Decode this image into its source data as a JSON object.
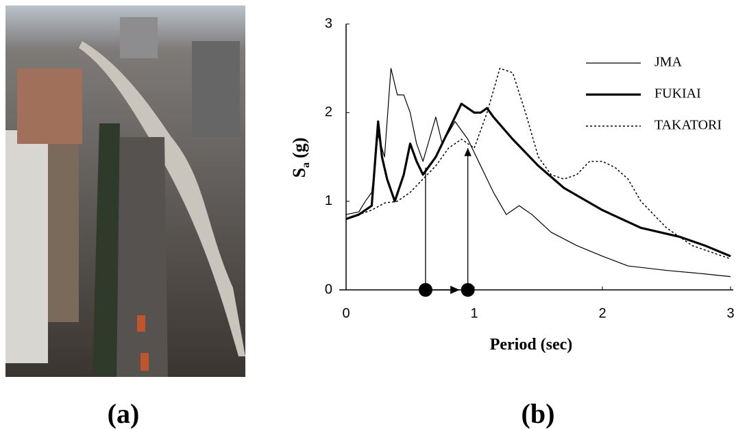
{
  "panel_labels": [
    "(a)",
    "(b)"
  ],
  "chart_data": {
    "type": "line",
    "xlabel": "Period (sec)",
    "ylabel_parts": [
      "S",
      "a",
      "(g)"
    ],
    "xlim": [
      0,
      3
    ],
    "ylim": [
      0,
      3
    ],
    "xticks": [
      0,
      1,
      2,
      3
    ],
    "yticks": [
      0,
      1,
      2,
      3
    ],
    "legend": "upper right",
    "series": [
      {
        "name": "JMA",
        "color": "#000000",
        "width": 1.2,
        "dash": "solid",
        "x": [
          0,
          0.1,
          0.15,
          0.2,
          0.25,
          0.3,
          0.35,
          0.4,
          0.45,
          0.5,
          0.55,
          0.6,
          0.65,
          0.7,
          0.75,
          0.85,
          0.95,
          1.05,
          1.15,
          1.25,
          1.3,
          1.35,
          1.45,
          1.6,
          1.8,
          2.0,
          2.2,
          2.5,
          2.8,
          3.0
        ],
        "values": [
          0.85,
          0.88,
          1.0,
          1.1,
          1.75,
          1.5,
          2.5,
          2.2,
          2.2,
          2.0,
          1.65,
          1.45,
          1.7,
          1.95,
          1.65,
          1.9,
          1.7,
          1.4,
          1.1,
          0.85,
          0.9,
          0.95,
          0.85,
          0.65,
          0.5,
          0.38,
          0.27,
          0.22,
          0.18,
          0.15
        ]
      },
      {
        "name": "FUKIAI",
        "color": "#000000",
        "width": 3.2,
        "dash": "solid",
        "x": [
          0,
          0.1,
          0.2,
          0.25,
          0.28,
          0.32,
          0.38,
          0.45,
          0.5,
          0.55,
          0.6,
          0.7,
          0.8,
          0.9,
          1.0,
          1.05,
          1.1,
          1.15,
          1.3,
          1.5,
          1.7,
          2.0,
          2.3,
          2.6,
          2.8,
          3.0
        ],
        "values": [
          0.8,
          0.85,
          0.95,
          1.9,
          1.5,
          1.25,
          1.0,
          1.3,
          1.65,
          1.45,
          1.3,
          1.5,
          1.8,
          2.1,
          2.0,
          2.0,
          2.05,
          1.95,
          1.7,
          1.4,
          1.15,
          0.9,
          0.7,
          0.6,
          0.5,
          0.38
        ]
      },
      {
        "name": "TAKATORI",
        "color": "#000000",
        "width": 1.5,
        "dash": "dotted",
        "x": [
          0,
          0.2,
          0.3,
          0.4,
          0.5,
          0.6,
          0.7,
          0.8,
          0.9,
          1.0,
          1.1,
          1.2,
          1.3,
          1.4,
          1.5,
          1.6,
          1.7,
          1.8,
          1.9,
          2.0,
          2.1,
          2.2,
          2.3,
          2.5,
          2.7,
          3.0
        ],
        "values": [
          0.8,
          0.9,
          0.98,
          1.0,
          1.1,
          1.25,
          1.4,
          1.6,
          1.7,
          1.6,
          2.0,
          2.5,
          2.45,
          2.0,
          1.5,
          1.3,
          1.25,
          1.3,
          1.45,
          1.45,
          1.38,
          1.25,
          1.0,
          0.7,
          0.5,
          0.35
        ]
      }
    ],
    "annotation_points": [
      {
        "x": 0.62,
        "y": 1.38
      },
      {
        "x": 0.95,
        "y": 1.6
      }
    ]
  }
}
